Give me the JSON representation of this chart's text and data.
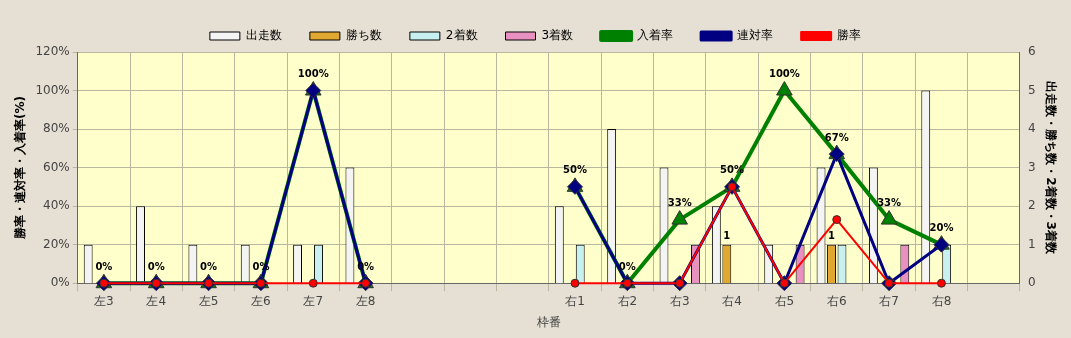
{
  "chart_data": {
    "type": "bar",
    "xlabel": "枠番",
    "ylabel": "勝率・連対率・入着率(%)",
    "y2label": "出走数・勝ち数・2着数・3着数",
    "categories": [
      "左3",
      "左4",
      "左5",
      "左6",
      "左7",
      "左8",
      null,
      null,
      null,
      "右1",
      "右2",
      "右3",
      "右4",
      "右5",
      "右6",
      "右7",
      "右8",
      null
    ],
    "series": [
      {
        "name": "出走数",
        "type": "bar",
        "axis": "y2",
        "color": "#f4f4f4",
        "values": [
          1,
          2,
          1,
          1,
          1,
          3,
          null,
          null,
          null,
          2,
          4,
          3,
          2,
          1,
          3,
          3,
          5,
          null
        ]
      },
      {
        "name": "勝ち数",
        "type": "bar",
        "axis": "y2",
        "color": "#e0a830",
        "values": [
          0,
          0,
          0,
          0,
          0,
          0,
          null,
          null,
          null,
          0,
          0,
          0,
          1,
          0,
          1,
          0,
          0,
          null
        ],
        "value_labels": [
          null,
          null,
          null,
          null,
          null,
          null,
          null,
          null,
          null,
          null,
          null,
          null,
          "1",
          null,
          "1",
          null,
          null,
          null
        ]
      },
      {
        "name": "2着数",
        "type": "bar",
        "axis": "y2",
        "color": "#c8f0f0",
        "values": [
          0,
          0,
          0,
          0,
          1,
          0,
          null,
          null,
          null,
          1,
          0,
          0,
          0,
          0,
          1,
          0,
          1,
          null
        ]
      },
      {
        "name": "3着数",
        "type": "bar",
        "axis": "y2",
        "color": "#e890c0",
        "values": [
          0,
          0,
          0,
          0,
          0,
          0,
          null,
          null,
          null,
          0,
          0,
          1,
          0,
          1,
          0,
          1,
          0,
          null
        ]
      },
      {
        "name": "入着率",
        "type": "line",
        "axis": "y",
        "marker": "triangle",
        "color": "#008000",
        "values": [
          0,
          0,
          0,
          0,
          100,
          0,
          null,
          null,
          null,
          50,
          0,
          33,
          50,
          100,
          67,
          33,
          20,
          null
        ],
        "value_labels": [
          "0%",
          "0%",
          "0%",
          "0%",
          "100%",
          "0%",
          null,
          null,
          null,
          "50%",
          "0%",
          "33%",
          "50%",
          "100%",
          "67%",
          "33%",
          "20%",
          null
        ]
      },
      {
        "name": "連対率",
        "type": "line",
        "axis": "y",
        "marker": "diamond",
        "color": "#000080",
        "values": [
          0,
          0,
          0,
          0,
          100,
          0,
          null,
          null,
          null,
          50,
          0,
          0,
          50,
          0,
          67,
          0,
          20,
          null
        ]
      },
      {
        "name": "勝率",
        "type": "line",
        "axis": "y",
        "marker": "circle",
        "color": "#ff0000",
        "values": [
          0,
          0,
          0,
          0,
          0,
          0,
          null,
          null,
          null,
          0,
          0,
          0,
          50,
          0,
          33,
          0,
          0,
          null
        ]
      }
    ],
    "ylim": [
      0,
      120
    ],
    "yticks": [
      {
        "value": 0,
        "label": "0%"
      },
      {
        "value": 20,
        "label": "20%"
      },
      {
        "value": 40,
        "label": "40%"
      },
      {
        "value": 60,
        "label": "60%"
      },
      {
        "value": 80,
        "label": "80%"
      },
      {
        "value": 100,
        "label": "100%"
      },
      {
        "value": 120,
        "label": "120%"
      }
    ],
    "y2lim": [
      0,
      6
    ],
    "y2ticks": [
      0,
      1,
      2,
      3,
      4,
      5,
      6
    ],
    "grid": true,
    "legend": "top"
  }
}
